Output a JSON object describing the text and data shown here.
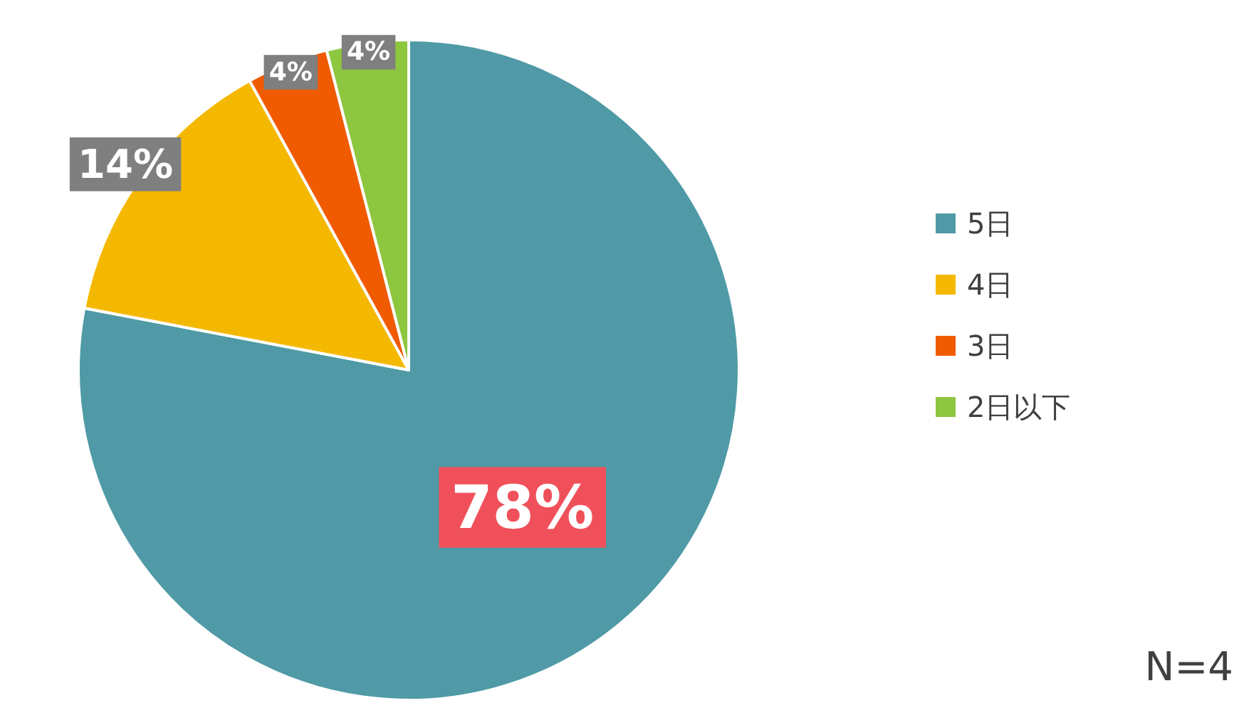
{
  "chart_data": {
    "type": "pie",
    "categories": [
      "5日",
      "4日",
      "3日",
      "2日以下"
    ],
    "values": [
      78,
      14,
      4,
      4
    ],
    "colors": [
      "#4f9aa6",
      "#f5b800",
      "#f05a00",
      "#8dc63f"
    ],
    "value_labels": [
      "78%",
      "14%",
      "4%",
      "4%"
    ],
    "legend": "right",
    "annotations": [
      "N=4"
    ]
  }
}
